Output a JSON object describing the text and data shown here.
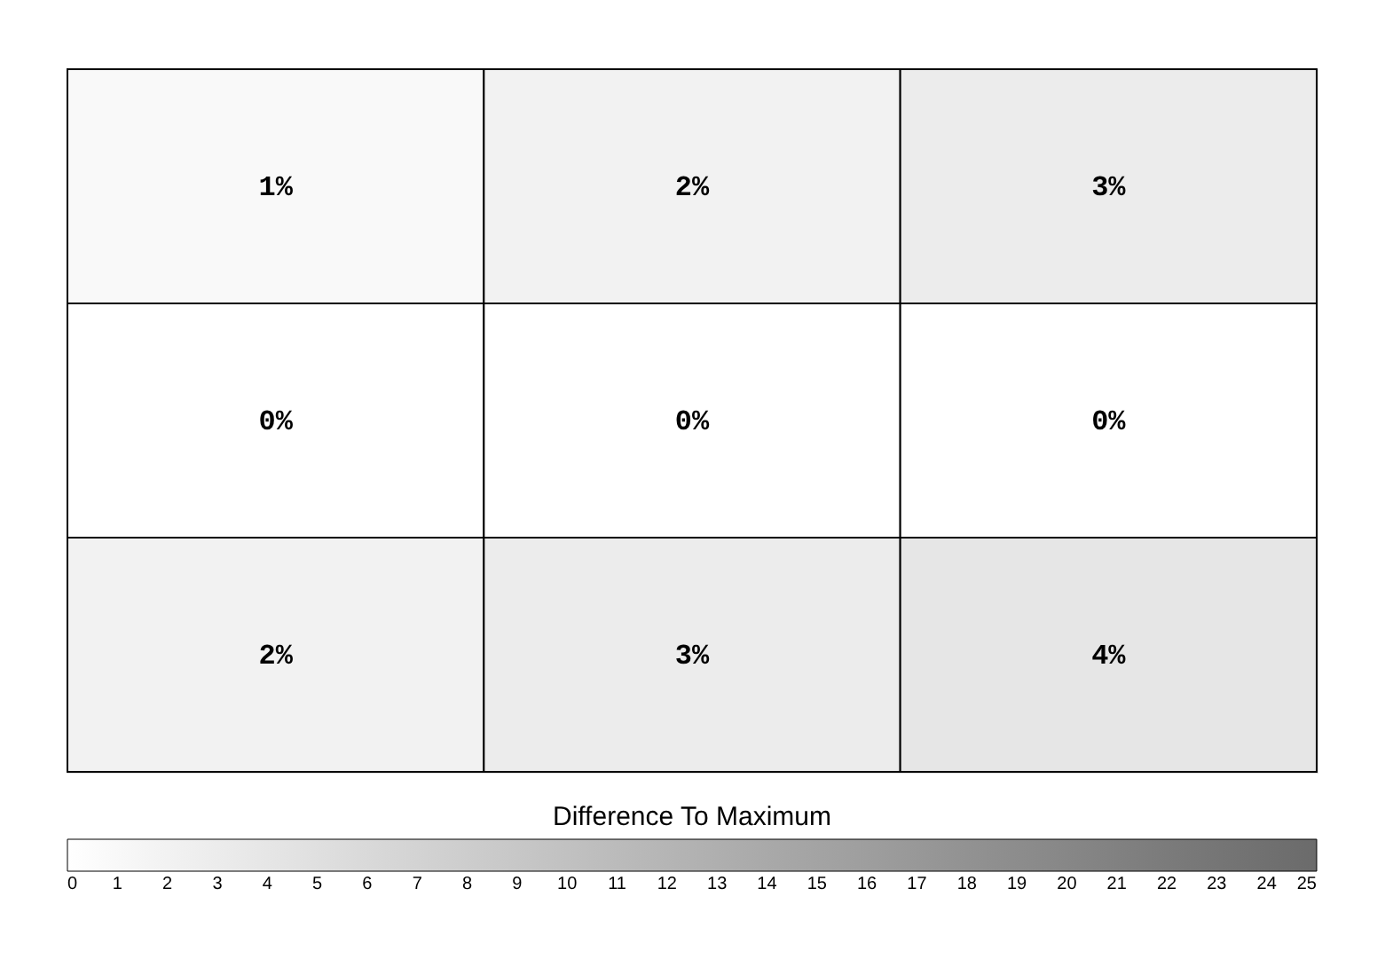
{
  "chart_data": {
    "type": "heatmap",
    "categories": [
      null,
      null,
      null
    ],
    "y_categories": [
      null,
      null,
      null
    ],
    "cells": [
      [
        1,
        2,
        3
      ],
      [
        0,
        0,
        0
      ],
      [
        2,
        3,
        4
      ]
    ],
    "cell_labels": [
      [
        "1%",
        "2%",
        "3%"
      ],
      [
        "0%",
        "0%",
        "0%"
      ],
      [
        "2%",
        "3%",
        "4%"
      ]
    ],
    "clim": [
      0,
      25
    ],
    "cticks": [
      0,
      1,
      2,
      3,
      4,
      5,
      6,
      7,
      8,
      9,
      10,
      11,
      12,
      13,
      14,
      15,
      16,
      17,
      18,
      19,
      20,
      21,
      22,
      23,
      24,
      25
    ],
    "clabel": "Difference To Maximum",
    "colors": [
      "#ffffff",
      "#6b6b6b"
    ],
    "tick_labels": false
  }
}
